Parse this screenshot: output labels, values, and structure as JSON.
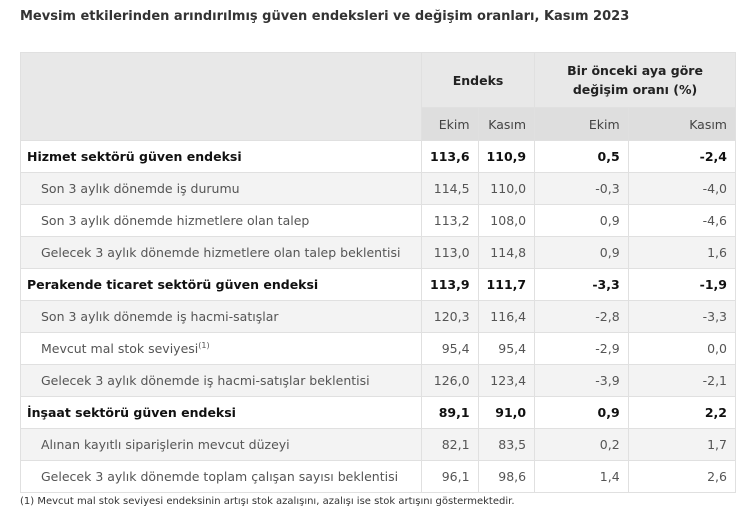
{
  "title": "Mevsim etkilerinden arındırılmış güven endeksleri ve değişim oranları, Kasım 2023",
  "header": {
    "group1": "Endeks",
    "group2": "Bir önceki aya göre değişim oranı (%)",
    "cols": [
      "Ekim",
      "Kasım",
      "Ekim",
      "Kasım"
    ]
  },
  "rows": [
    {
      "label": "Hizmet sektörü güven endeksi",
      "main": true,
      "values": [
        "113,6",
        "110,9",
        "0,5",
        "-2,4"
      ]
    },
    {
      "label": "Son 3 aylık dönemde iş durumu",
      "values": [
        "114,5",
        "110,0",
        "-0,3",
        "-4,0"
      ]
    },
    {
      "label": "Son 3 aylık dönemde hizmetlere olan talep",
      "values": [
        "113,2",
        "108,0",
        "0,9",
        "-4,6"
      ]
    },
    {
      "label": "Gelecek 3 aylık dönemde hizmetlere olan talep beklentisi",
      "values": [
        "113,0",
        "114,8",
        "0,9",
        "1,6"
      ]
    },
    {
      "label": "Perakende ticaret sektörü güven endeksi",
      "main": true,
      "values": [
        "113,9",
        "111,7",
        "-3,3",
        "-1,9"
      ]
    },
    {
      "label": "Son 3 aylık dönemde iş hacmi-satışlar",
      "values": [
        "120,3",
        "116,4",
        "-2,8",
        "-3,3"
      ]
    },
    {
      "label": "Mevcut mal stok seviyesi",
      "sup": "(1)",
      "values": [
        "95,4",
        "95,4",
        "-2,9",
        "0,0"
      ]
    },
    {
      "label": "Gelecek 3 aylık dönemde iş hacmi-satışlar beklentisi",
      "values": [
        "126,0",
        "123,4",
        "-3,9",
        "-2,1"
      ]
    },
    {
      "label": "İnşaat sektörü güven endeksi",
      "main": true,
      "values": [
        "89,1",
        "91,0",
        "0,9",
        "2,2"
      ]
    },
    {
      "label": "Alınan kayıtlı siparişlerin mevcut düzeyi",
      "values": [
        "82,1",
        "83,5",
        "0,2",
        "1,7"
      ]
    },
    {
      "label": "Gelecek 3 aylık dönemde toplam çalışan sayısı beklentisi",
      "values": [
        "96,1",
        "98,6",
        "1,4",
        "2,6"
      ]
    }
  ],
  "footnote": "(1) Mevcut mal stok seviyesi endeksinin artışı stok azalışını, azalışı ise stok artışını göstermektedir."
}
